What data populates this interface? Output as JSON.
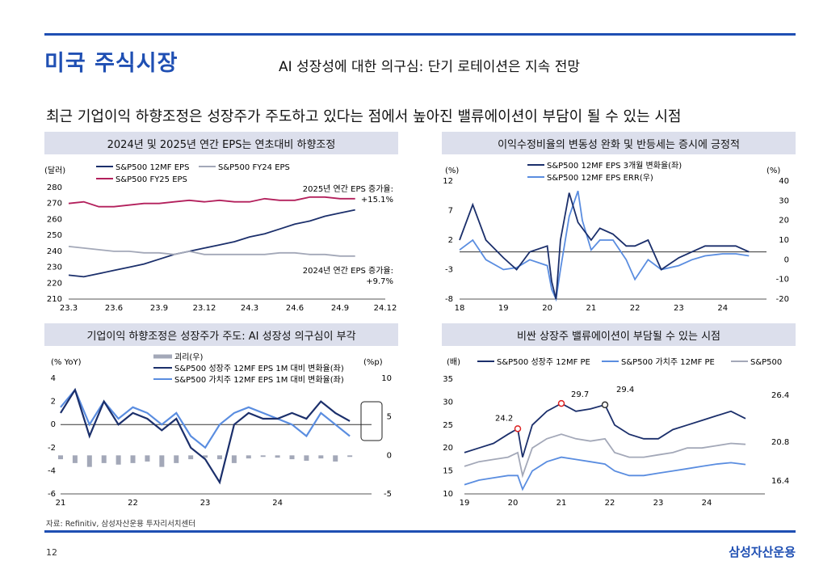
{
  "header": {
    "section": "미국 주식시장",
    "subtitle": "AI 성장성에 대한 의구심: 단기 로테이션은 지속 전망",
    "headline": "최근 기업이익 하향조정은 성장주가 주도하고 있다는 점에서 높아진 밸류에이션이 부담이 될 수 있는 시점"
  },
  "footer": {
    "source": "자료: Refinitiv, 삼성자산운용 투자리서치센터",
    "page": "12",
    "brand": "삼성자산운용"
  },
  "colors": {
    "navy": "#1b2f6b",
    "blue": "#5a8de0",
    "gray": "#a3a8b8",
    "crimson": "#b3205c",
    "accent": "#1f4fb3"
  },
  "chart_data": [
    {
      "id": "eps",
      "type": "line",
      "title": "2024년 및 2025년 연간 EPS는 연초대비 하향조정",
      "ylabel": "(달러)",
      "ylim": [
        210,
        280
      ],
      "yticks": [
        "210",
        "220",
        "230",
        "240",
        "250",
        "260",
        "270",
        "280"
      ],
      "x": [
        0,
        1,
        2,
        3,
        4,
        5,
        6,
        7,
        8,
        9,
        10,
        11,
        12,
        13,
        14,
        15,
        16,
        17,
        18,
        19
      ],
      "xticks": [
        "23.3",
        "23.6",
        "23.9",
        "23.12",
        "24.3",
        "24.6",
        "24.9",
        "24.12"
      ],
      "xtick_pos": [
        0,
        3,
        6,
        9,
        12,
        15,
        18,
        21
      ],
      "xlim": [
        0,
        21
      ],
      "series": [
        {
          "name": "S&P500 12MF EPS",
          "color": "navy",
          "values": [
            225,
            224,
            226,
            228,
            230,
            232,
            235,
            238,
            240,
            242,
            244,
            246,
            249,
            251,
            254,
            257,
            259,
            262,
            264,
            266
          ]
        },
        {
          "name": "S&P500 FY24 EPS",
          "color": "gray",
          "values": [
            243,
            242,
            241,
            240,
            240,
            239,
            239,
            238,
            240,
            238,
            238,
            238,
            238,
            238,
            239,
            239,
            238,
            238,
            237,
            237
          ]
        },
        {
          "name": "S&P500 FY25 EPS",
          "color": "crimson",
          "values": [
            270,
            271,
            268,
            268,
            269,
            270,
            270,
            271,
            272,
            271,
            272,
            271,
            271,
            273,
            272,
            272,
            274,
            274,
            273,
            273
          ]
        }
      ],
      "annotations": [
        "2025년 연간 EPS 증가율:",
        "+15.1%",
        "2024년 연간 EPS 증가율:",
        "+9.7%"
      ]
    },
    {
      "id": "revision",
      "type": "line",
      "title": "이익수정비율의 변동성 완화 및 반등세는 증시에 긍정적",
      "ylabel_left": "(%)",
      "ylabel_right": "(%)",
      "ylim_left": [
        -8,
        12
      ],
      "ylim_right": [
        -20,
        40
      ],
      "yticks_left": [
        "12",
        "7",
        "2",
        "-3",
        "-8"
      ],
      "yticks_right": [
        "40",
        "30",
        "20",
        "10",
        "0",
        "-10",
        "-20"
      ],
      "xticks": [
        "18",
        "19",
        "20",
        "21",
        "22",
        "23",
        "24"
      ],
      "x": [
        0,
        0.3,
        0.6,
        1,
        1.3,
        1.6,
        2,
        2.1,
        2.2,
        2.3,
        2.5,
        2.7,
        2.8,
        3,
        3.2,
        3.5,
        3.8,
        4,
        4.3,
        4.6,
        5,
        5.3,
        5.6,
        6,
        6.3,
        6.6
      ],
      "xlim": [
        0,
        7
      ],
      "series": [
        {
          "name": "S&P500 12MF EPS 3개월 변화율(좌)",
          "color": "navy",
          "axis": "left",
          "values": [
            2,
            8,
            2,
            -1,
            -3,
            0,
            1,
            -5,
            -8,
            2,
            10,
            5,
            4,
            2,
            4,
            3,
            1,
            1,
            2,
            -3,
            -1,
            0,
            1,
            1,
            1,
            0
          ]
        },
        {
          "name": "S&P500 12MF EPS ERR(우)",
          "color": "blue",
          "axis": "right",
          "values": [
            5,
            10,
            0,
            -5,
            -4,
            0,
            -3,
            -15,
            -20,
            -5,
            22,
            35,
            20,
            5,
            10,
            10,
            0,
            -10,
            0,
            -5,
            -3,
            0,
            2,
            3,
            3,
            2
          ]
        }
      ]
    },
    {
      "id": "divergence",
      "type": "line",
      "title": "기업이익 하향조정은 성장주가 주도: AI 성장성 의구심이 부각",
      "ylabel_left": "(% YoY)",
      "ylabel_right": "(%p)",
      "ylim_left": [
        -6,
        4
      ],
      "ylim_right": [
        -5,
        10
      ],
      "yticks_left": [
        "4",
        "2",
        "0",
        "-2",
        "-4",
        "-6"
      ],
      "yticks_right": [
        "10",
        "5",
        "0",
        "-5"
      ],
      "xticks": [
        "21",
        "22",
        "23",
        "24"
      ],
      "x": [
        0,
        0.2,
        0.4,
        0.6,
        0.8,
        1,
        1.2,
        1.4,
        1.6,
        1.8,
        2,
        2.2,
        2.4,
        2.6,
        2.8,
        3,
        3.2,
        3.4,
        3.6,
        3.8,
        4
      ],
      "xlim": [
        0,
        4.3
      ],
      "series": [
        {
          "name": "괴리(우)",
          "color": "gray",
          "axis": "right",
          "type": "bar",
          "values": [
            -0.5,
            -1,
            -1.5,
            -1,
            -1.2,
            -1,
            -0.8,
            -1.5,
            -1,
            -0.5,
            -0.3,
            -0.5,
            -1,
            -0.4,
            -0.2,
            -0.3,
            -0.5,
            -0.7,
            -0.4,
            -0.8,
            -0.2
          ]
        },
        {
          "name": "S&P500 성장주 12MF EPS 1M 대비 변화율(좌)",
          "color": "navy",
          "axis": "left",
          "values": [
            1,
            3,
            -1,
            2,
            0,
            1,
            0.5,
            -0.5,
            0.5,
            -2,
            -3,
            -5,
            0,
            1,
            0.5,
            0.5,
            1,
            0.5,
            2,
            1,
            0.3
          ]
        },
        {
          "name": "S&P500 가치주 12MF EPS 1M 대비 변화율(좌)",
          "color": "blue",
          "axis": "left",
          "values": [
            1.5,
            3,
            0,
            2,
            0.5,
            1.5,
            1,
            0,
            1,
            -1,
            -2,
            0,
            1,
            1.5,
            1,
            0.5,
            0,
            -1,
            1,
            0,
            -1
          ]
        }
      ]
    },
    {
      "id": "valuation",
      "type": "line",
      "title": "비싼 상장주 밸류에이션이 부담될 수 있는 시점",
      "ylabel": "(배)",
      "ylim": [
        10,
        35
      ],
      "yticks": [
        "35",
        "30",
        "25",
        "20",
        "15",
        "10"
      ],
      "xticks": [
        "19",
        "20",
        "21",
        "22",
        "23",
        "24"
      ],
      "x": [
        0,
        0.3,
        0.6,
        0.9,
        1.1,
        1.2,
        1.4,
        1.7,
        2,
        2.3,
        2.6,
        2.9,
        3.1,
        3.4,
        3.7,
        4,
        4.3,
        4.6,
        4.9,
        5.2,
        5.5,
        5.8
      ],
      "xlim": [
        0,
        6.2
      ],
      "series": [
        {
          "name": "S&P500 성장주 12MF PE",
          "color": "navy",
          "values": [
            19,
            20,
            21,
            23,
            24.2,
            18,
            25,
            28,
            29.7,
            28,
            28.5,
            29.4,
            25,
            23,
            22,
            22,
            24,
            25,
            26,
            27,
            28,
            26.4
          ]
        },
        {
          "name": "S&P500 가치주 12MF PE",
          "color": "blue",
          "values": [
            12,
            13,
            13.5,
            14,
            14,
            11,
            15,
            17,
            18,
            17.5,
            17,
            16.5,
            15,
            14,
            14,
            14.5,
            15,
            15.5,
            16,
            16.5,
            16.8,
            16.4
          ]
        },
        {
          "name": "S&P500",
          "color": "gray",
          "values": [
            16,
            17,
            17.5,
            18,
            19,
            14,
            20,
            22,
            23,
            22,
            21.5,
            22,
            19,
            18,
            18,
            18.5,
            19,
            20,
            20,
            20.5,
            21,
            20.8
          ]
        }
      ],
      "labels": [
        "29.7",
        "29.4",
        "24.2",
        "26.4",
        "20.8",
        "16.4"
      ]
    }
  ]
}
